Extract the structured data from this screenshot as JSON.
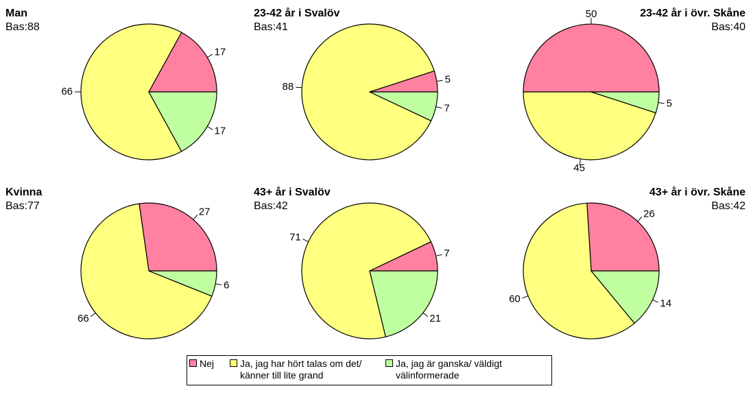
{
  "chart_data": [
    {
      "type": "pie",
      "title": "Man",
      "subtitle": "Bas:88",
      "categories": [
        "Nej",
        "Ja, jag har hört talas om det/ känner till lite grand",
        "Ja, jag är ganska/ väldigt välinformerade"
      ],
      "values": [
        17,
        66,
        17
      ],
      "colors": [
        "#ff80a0",
        "#ffff80",
        "#c0ffa0"
      ]
    },
    {
      "type": "pie",
      "title": "23-42 år i Svalöv",
      "subtitle": "Bas:41",
      "categories": [
        "Nej",
        "Ja, jag har hört talas om det/ känner till lite grand",
        "Ja, jag är ganska/ väldigt välinformerade"
      ],
      "values": [
        5,
        88,
        7
      ],
      "colors": [
        "#ff80a0",
        "#ffff80",
        "#c0ffa0"
      ]
    },
    {
      "type": "pie",
      "title": "23-42 år i  övr. Skåne",
      "subtitle": "Bas:40",
      "categories": [
        "Nej",
        "Ja, jag har hört talas om det/ känner till lite grand",
        "Ja, jag är ganska/ väldigt välinformerade"
      ],
      "values": [
        50,
        45,
        5
      ],
      "colors": [
        "#ff80a0",
        "#ffff80",
        "#c0ffa0"
      ]
    },
    {
      "type": "pie",
      "title": "Kvinna",
      "subtitle": "Bas:77",
      "categories": [
        "Nej",
        "Ja, jag har hört talas om det/ känner till lite grand",
        "Ja, jag är ganska/ väldigt välinformerade"
      ],
      "values": [
        27,
        66,
        6
      ],
      "colors": [
        "#ff80a0",
        "#ffff80",
        "#c0ffa0"
      ]
    },
    {
      "type": "pie",
      "title": "43+ år i Svalöv",
      "subtitle": "Bas:42",
      "categories": [
        "Nej",
        "Ja, jag har hört talas om det/ känner till lite grand",
        "Ja, jag är ganska/ väldigt välinformerade"
      ],
      "values": [
        7,
        71,
        21
      ],
      "colors": [
        "#ff80a0",
        "#ffff80",
        "#c0ffa0"
      ]
    },
    {
      "type": "pie",
      "title": "43+ år i övr. Skåne",
      "subtitle": "Bas:42",
      "categories": [
        "Nej",
        "Ja, jag har hört talas om det/ känner till lite grand",
        "Ja, jag är ganska/ väldigt välinformerade"
      ],
      "values": [
        26,
        60,
        14
      ],
      "colors": [
        "#ff80a0",
        "#ffff80",
        "#c0ffa0"
      ]
    }
  ]
}
